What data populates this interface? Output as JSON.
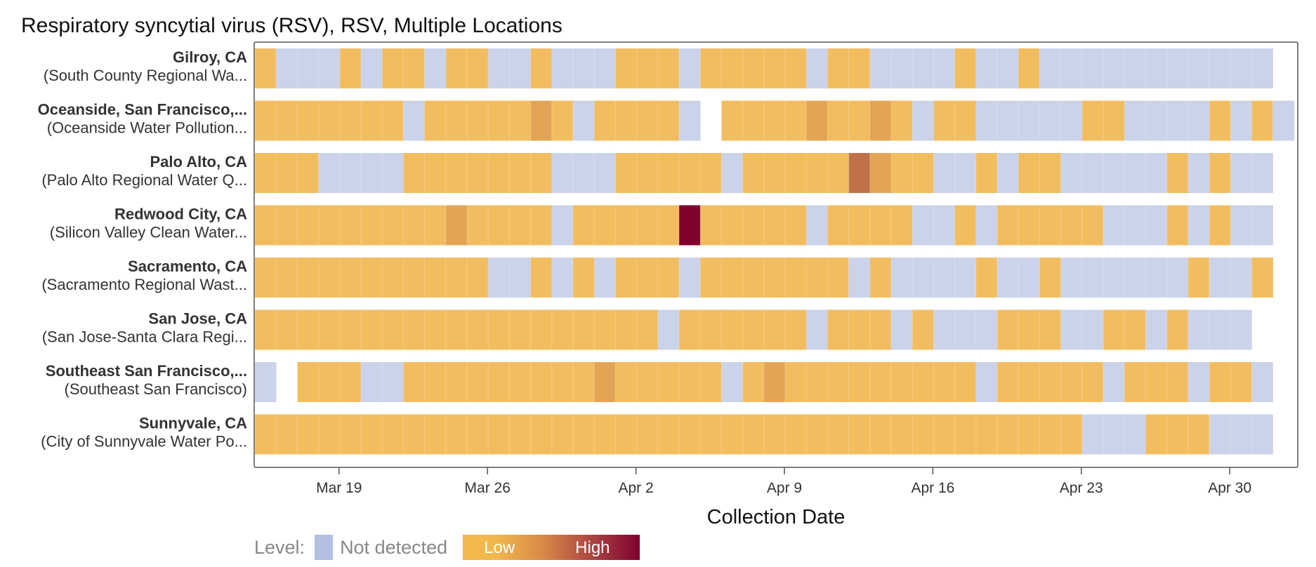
{
  "title": "Respiratory syncytial virus (RSV), RSV, Multiple Locations",
  "chart_data": {
    "type": "heatmap",
    "title": "Respiratory syncytial virus (RSV), RSV, Multiple Locations",
    "xlabel": "Collection Date",
    "x_ticks": [
      "Mar 19",
      "Mar 26",
      "Apr 2",
      "Apr 9",
      "Apr 16",
      "Apr 23",
      "Apr 30"
    ],
    "x_range": [
      "Mar 15",
      "May 3"
    ],
    "encoding": "one cell per collection day starting Mar 15; 0 = not detected, 1-4 = detected level from low to high, null = no sample",
    "level_colors": {
      "none": "#cbd3ea",
      "low": "#f2bd5f",
      "low_mid": "#ebb356",
      "mid": "#e3a455",
      "high_mid": "#c0714a",
      "high": "#80002e"
    },
    "rows": [
      {
        "name": "Gilroy, CA",
        "subtitle": "(South County Regional Wa...",
        "levels": [
          1,
          0,
          0,
          0,
          1,
          0,
          1,
          1,
          0,
          1,
          1,
          0,
          0,
          1,
          0,
          0,
          0,
          1,
          1,
          1,
          0,
          1,
          1,
          1,
          1,
          1,
          0,
          1,
          1,
          0,
          0,
          0,
          0,
          1,
          0,
          0,
          1,
          0,
          0,
          0,
          0,
          0,
          0,
          0,
          0,
          0,
          0,
          0
        ]
      },
      {
        "name": "Oceanside, San Francisco,...",
        "subtitle": "(Oceanside Water Pollution...",
        "levels": [
          1,
          1,
          1,
          1,
          1,
          1,
          1,
          0,
          1,
          1,
          1,
          1,
          1,
          2,
          1,
          0,
          1,
          1,
          1,
          1,
          0,
          null,
          1,
          1,
          1,
          1,
          2,
          1,
          1,
          2,
          1,
          0,
          1,
          1,
          0,
          0,
          0,
          0,
          0,
          1,
          1,
          0,
          0,
          0,
          0,
          1,
          0,
          1,
          0
        ]
      },
      {
        "name": "Palo Alto, CA",
        "subtitle": "(Palo Alto Regional Water Q...",
        "levels": [
          1,
          1,
          1,
          0,
          0,
          0,
          0,
          1,
          1,
          1,
          1,
          1,
          1,
          1,
          0,
          0,
          0,
          1,
          1,
          1,
          1,
          1,
          0,
          1,
          1,
          1,
          1,
          1,
          3,
          2,
          1,
          1,
          0,
          0,
          1,
          0,
          1,
          1,
          0,
          0,
          0,
          0,
          0,
          1,
          0,
          1,
          0,
          0
        ]
      },
      {
        "name": "Redwood City, CA",
        "subtitle": "(Silicon Valley Clean Water...",
        "levels": [
          1,
          1,
          1,
          1,
          1,
          1,
          1,
          1,
          1,
          2,
          1,
          1,
          1,
          1,
          0,
          1,
          1,
          1,
          1,
          1,
          4,
          1,
          1,
          1,
          1,
          1,
          0,
          1,
          1,
          1,
          1,
          0,
          0,
          1,
          0,
          1,
          1,
          1,
          1,
          1,
          0,
          0,
          0,
          1,
          0,
          1,
          0,
          0
        ]
      },
      {
        "name": "Sacramento, CA",
        "subtitle": "(Sacramento Regional Wast...",
        "levels": [
          1,
          1,
          1,
          1,
          1,
          1,
          1,
          1,
          1,
          1,
          1,
          0,
          0,
          1,
          0,
          1,
          0,
          1,
          1,
          1,
          0,
          1,
          1,
          1,
          1,
          1,
          1,
          1,
          0,
          1,
          0,
          0,
          0,
          0,
          1,
          0,
          0,
          1,
          0,
          0,
          0,
          0,
          0,
          0,
          1,
          0,
          0,
          1
        ]
      },
      {
        "name": "San Jose, CA",
        "subtitle": "(San Jose-Santa Clara Regi...",
        "levels": [
          1,
          1,
          1,
          1,
          1,
          1,
          1,
          1,
          1,
          1,
          1,
          1,
          1,
          1,
          1,
          1,
          1,
          1,
          1,
          0,
          1,
          1,
          1,
          1,
          1,
          1,
          0,
          1,
          1,
          1,
          0,
          1,
          0,
          0,
          0,
          1,
          1,
          1,
          0,
          0,
          1,
          1,
          0,
          1,
          0,
          0,
          0
        ]
      },
      {
        "name": "Southeast San Francisco,...",
        "subtitle": "(Southeast San Francisco)",
        "levels": [
          0,
          null,
          1,
          1,
          1,
          0,
          0,
          1,
          1,
          1,
          1,
          1,
          1,
          1,
          1,
          1,
          2,
          1,
          1,
          1,
          1,
          1,
          0,
          1,
          2,
          1,
          1,
          1,
          1,
          1,
          1,
          1,
          1,
          1,
          0,
          1,
          1,
          1,
          1,
          1,
          0,
          1,
          1,
          1,
          0,
          1,
          1,
          0
        ]
      },
      {
        "name": "Sunnyvale, CA",
        "subtitle": "(City of Sunnyvale Water Po...",
        "levels": [
          1,
          1,
          1,
          1,
          1,
          1,
          1,
          1,
          1,
          1,
          1,
          1,
          1,
          1,
          1,
          1,
          1,
          1,
          1,
          1,
          1,
          1,
          1,
          1,
          1,
          1,
          1,
          1,
          1,
          1,
          1,
          1,
          1,
          1,
          1,
          1,
          1,
          1,
          1,
          0,
          0,
          0,
          1,
          1,
          1,
          0,
          0,
          0
        ]
      }
    ]
  },
  "legend": {
    "label": "Level:",
    "not_detected": "Not detected",
    "low": "Low",
    "high": "High"
  }
}
